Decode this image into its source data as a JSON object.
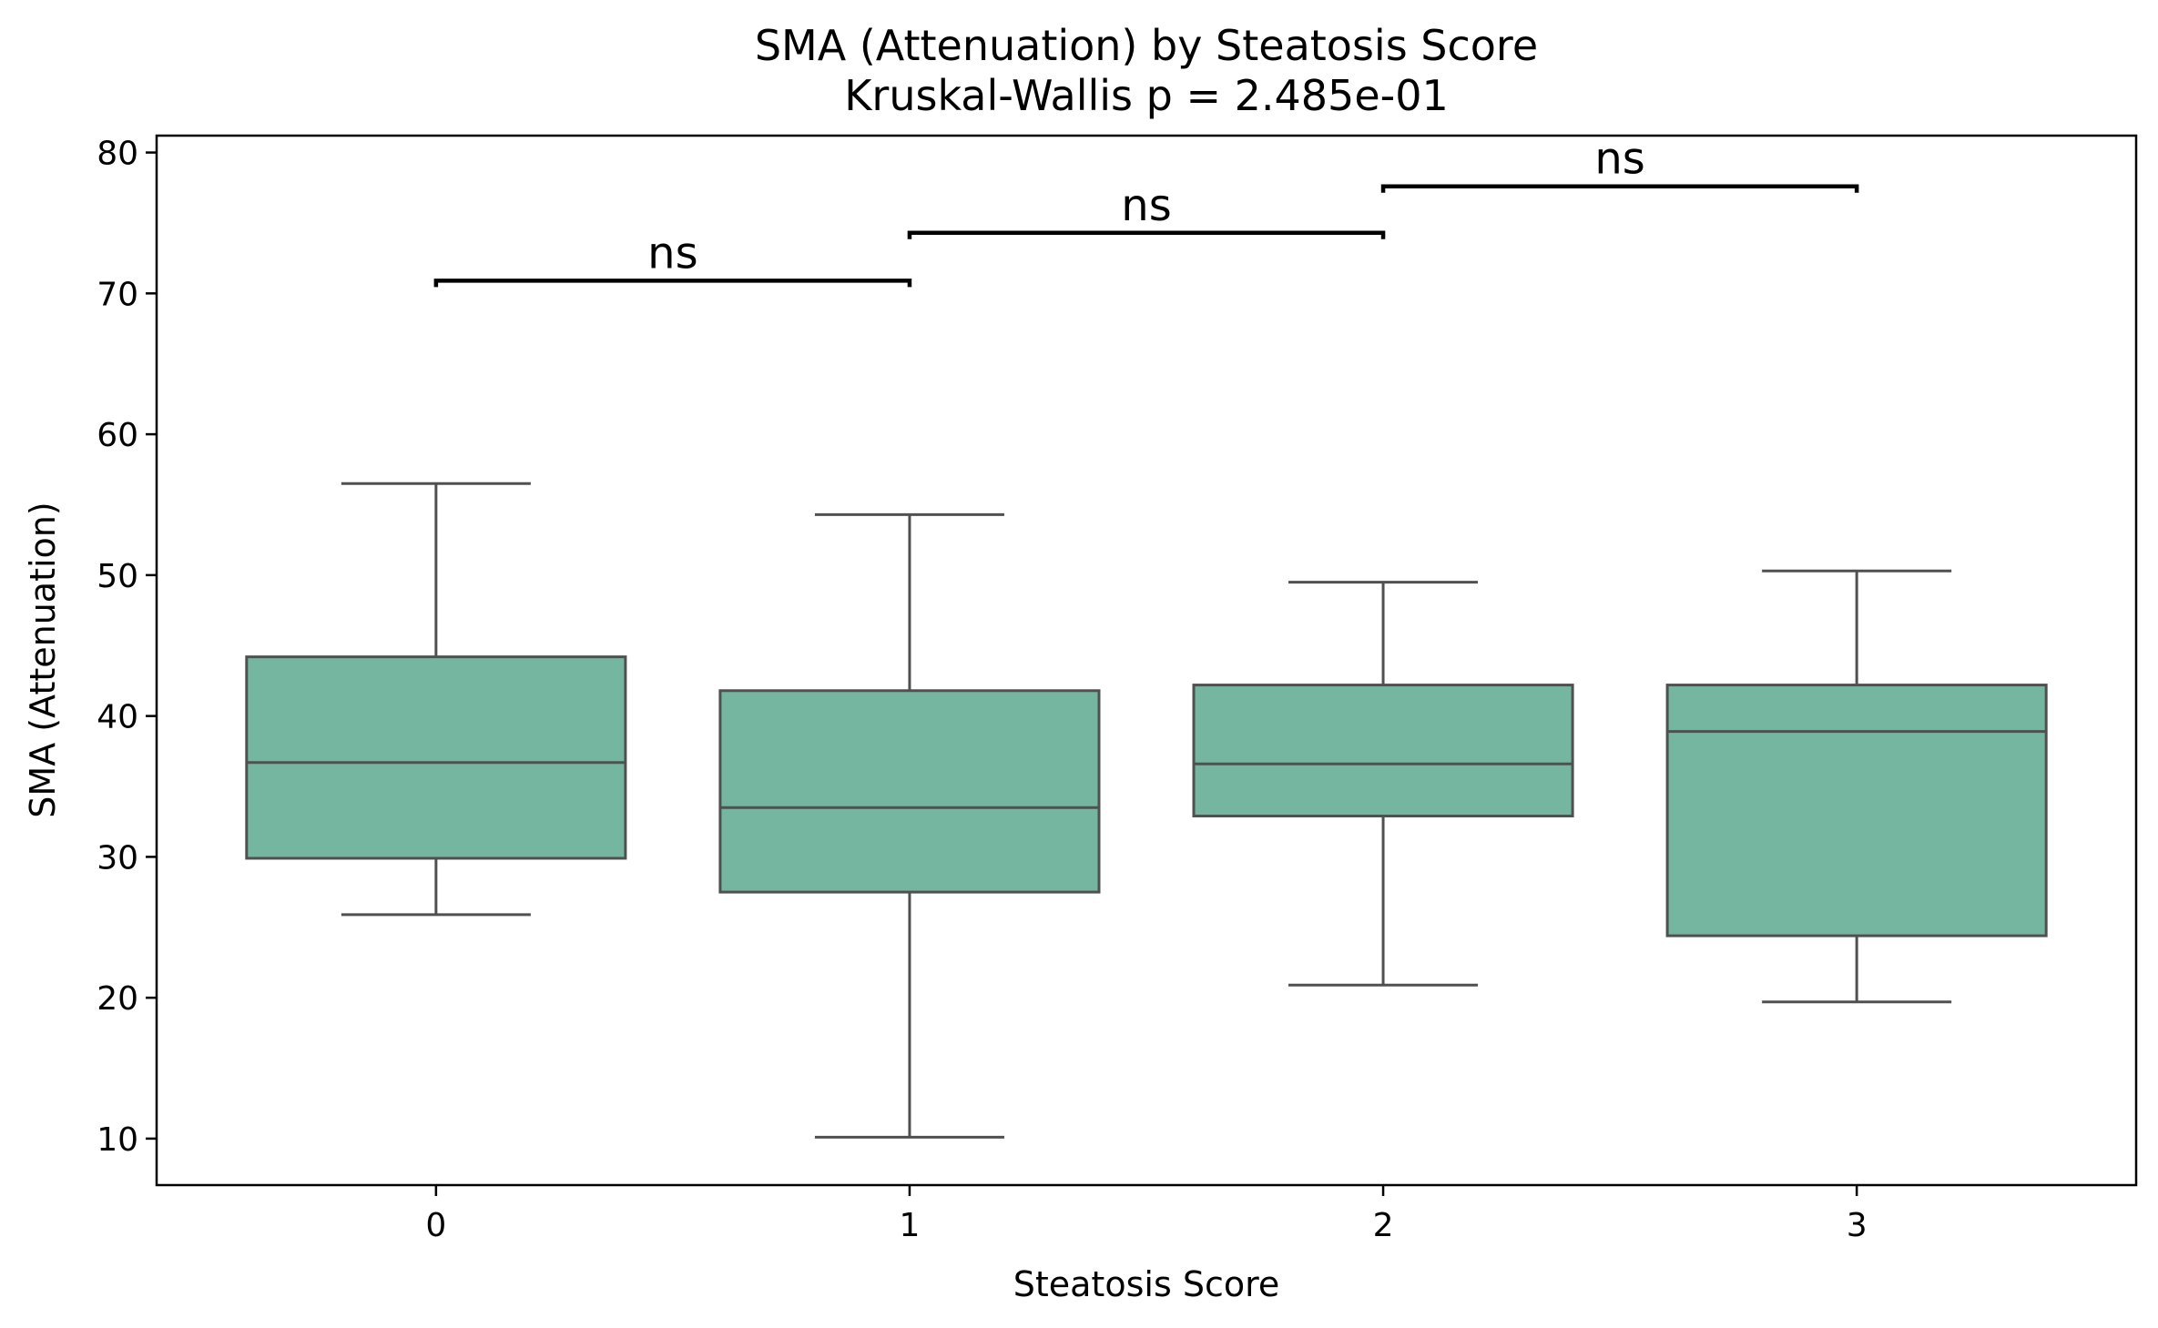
{
  "chart_data": {
    "type": "box",
    "title": "SMA (Attenuation) by Steatosis Score",
    "subtitle": "Kruskal-Wallis p = 2.485e-01",
    "xlabel": "Steatosis Score",
    "ylabel": "SMA (Attenuation)",
    "categories": [
      "0",
      "1",
      "2",
      "3"
    ],
    "ylim": [
      6.7,
      81.2
    ],
    "yticks": [
      10,
      20,
      30,
      40,
      50,
      60,
      70,
      80
    ],
    "grid": false,
    "colors": {
      "box_fill": "#75b6a1",
      "box_edge": "#505050",
      "bracket": "#000000"
    },
    "boxes": [
      {
        "category": "0",
        "whisker_low": 25.9,
        "q1": 29.9,
        "median": 36.7,
        "q3": 44.2,
        "whisker_high": 56.5
      },
      {
        "category": "1",
        "whisker_low": 10.1,
        "q1": 27.5,
        "median": 33.5,
        "q3": 41.8,
        "whisker_high": 54.3
      },
      {
        "category": "2",
        "whisker_low": 20.9,
        "q1": 32.9,
        "median": 36.6,
        "q3": 42.2,
        "whisker_high": 49.5
      },
      {
        "category": "3",
        "whisker_low": 19.7,
        "q1": 24.4,
        "median": 38.9,
        "q3": 42.2,
        "whisker_high": 50.3
      }
    ],
    "annotations": [
      {
        "from": "0",
        "to": "1",
        "y": 70.9,
        "label": "ns"
      },
      {
        "from": "1",
        "to": "2",
        "y": 74.3,
        "label": "ns"
      },
      {
        "from": "2",
        "to": "3",
        "y": 77.6,
        "label": "ns"
      }
    ]
  }
}
